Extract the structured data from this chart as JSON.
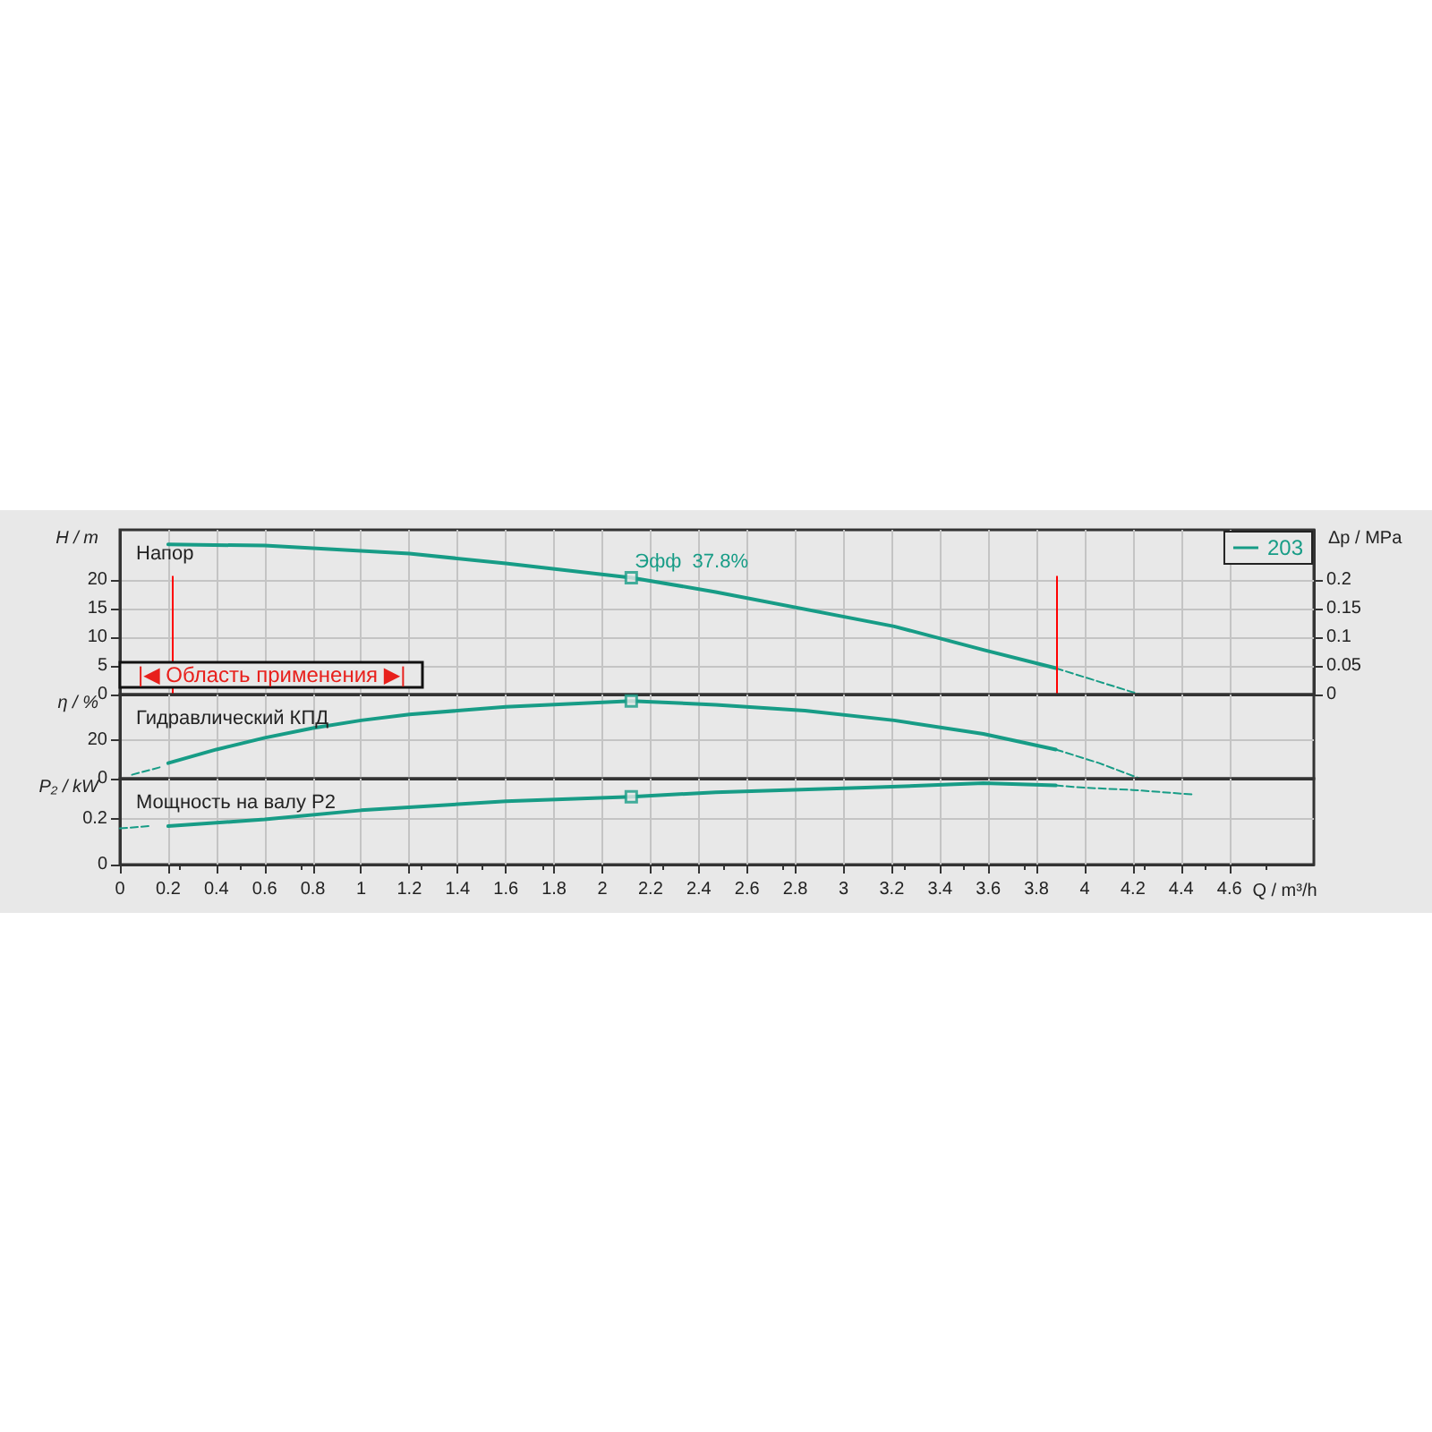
{
  "chart_data": [
    {
      "type": "line",
      "title": "Напор",
      "ylabel": "H / m",
      "y2label": "Δp / MPa",
      "xlim": [
        0,
        4.95
      ],
      "xticks": [
        0,
        0.2,
        0.4,
        0.6,
        0.8,
        1,
        1.2,
        1.4,
        1.6,
        1.8,
        2,
        2.2,
        2.4,
        2.6,
        2.8,
        3,
        3.2,
        3.4,
        3.6,
        3.8,
        4,
        4.2,
        4.4,
        4.6
      ],
      "ylim": [
        0,
        28.75
      ],
      "yticks": [
        0,
        5,
        10,
        15,
        20
      ],
      "y2lim": [
        0,
        0.2875
      ],
      "y2ticks": [
        0,
        0.05,
        0.1,
        0.15,
        0.2
      ],
      "grid": true,
      "legend": "top right",
      "tick_labels": "y",
      "series": [
        {
          "name": "203",
          "color": "#179c86",
          "x": [
            0.2,
            0.6,
            1.2,
            1.6,
            2.12,
            2.47,
            3.21,
            3.58,
            3.88
          ],
          "values": [
            26.2,
            26,
            24.6,
            22.9,
            20.4,
            17.9,
            11.9,
            7.8,
            4.6
          ]
        },
        {
          "color": "#179c86",
          "line_style": "dashed",
          "x": [
            3.88,
            4.23
          ],
          "values": [
            4.6,
            0
          ]
        },
        {
          "type": "scatter",
          "marker": "square",
          "color": "#179c86",
          "x": [
            2.12
          ],
          "values": [
            20.4
          ]
        }
      ],
      "ref_lines": [
        {
          "axis": "x",
          "value": 0.22,
          "color": "#ff0000"
        },
        {
          "axis": "x",
          "value": 3.88,
          "color": "#ff0000"
        }
      ],
      "annotations": [
        {
          "text": "Эфф  37.8%",
          "x": 2.12,
          "y": 20.4
        },
        "|◀ Область применения ▶|"
      ]
    },
    {
      "type": "line",
      "title": "Гидравлический КПД",
      "ylabel": "η / %",
      "xlim": [
        0,
        4.95
      ],
      "xticks": [
        0,
        0.2,
        0.4,
        0.6,
        0.8,
        1,
        1.2,
        1.4,
        1.6,
        1.8,
        2,
        2.2,
        2.4,
        2.6,
        2.8,
        3,
        3.2,
        3.4,
        3.6,
        3.8,
        4,
        4.2,
        4.4,
        4.6
      ],
      "ylim": [
        0,
        43.3
      ],
      "yticks": [
        0,
        20
      ],
      "grid": true,
      "tick_labels": "y",
      "series": [
        {
          "color": "#179c86",
          "line_style": "dashed",
          "x": [
            0.05,
            0.17
          ],
          "values": [
            2,
            6
          ]
        },
        {
          "color": "#179c86",
          "x": [
            0.2,
            0.4,
            0.6,
            0.8,
            1,
            1.2,
            1.6,
            2.12,
            2.47,
            2.84,
            3.21,
            3.58,
            3.88
          ],
          "values": [
            8,
            15,
            21,
            26,
            30,
            33,
            37,
            40,
            38,
            35,
            30,
            23,
            15
          ]
        },
        {
          "color": "#179c86",
          "line_style": "dashed",
          "x": [
            3.88,
            4.06,
            4.23
          ],
          "values": [
            15,
            8,
            0
          ]
        },
        {
          "type": "scatter",
          "marker": "square",
          "color": "#179c86",
          "x": [
            2.12
          ],
          "values": [
            40
          ]
        }
      ]
    },
    {
      "type": "line",
      "title": "Мощность на валу P2",
      "ylabel": "P₂ / kW",
      "xlabel": "Q / m³/h",
      "xlim": [
        0,
        4.95
      ],
      "xticks": [
        0,
        0.2,
        0.4,
        0.6,
        0.8,
        1,
        1.2,
        1.4,
        1.6,
        1.8,
        2,
        2.2,
        2.4,
        2.6,
        2.8,
        3,
        3.2,
        3.4,
        3.6,
        3.8,
        4,
        4.2,
        4.4,
        4.6
      ],
      "ylim": [
        0,
        0.38
      ],
      "yticks": [
        0,
        0.2
      ],
      "grid": true,
      "series": [
        {
          "color": "#179c86",
          "line_style": "dashed",
          "x": [
            0,
            0.12
          ],
          "values": [
            0.16,
            0.17
          ]
        },
        {
          "color": "#179c86",
          "x": [
            0.2,
            0.6,
            1,
            1.6,
            2.12,
            2.47,
            3.09,
            3.58,
            3.88
          ],
          "values": [
            0.17,
            0.2,
            0.24,
            0.28,
            0.3,
            0.32,
            0.34,
            0.36,
            0.35
          ]
        },
        {
          "color": "#179c86",
          "line_style": "dashed",
          "x": [
            3.88,
            4,
            4.2,
            4.45
          ],
          "values": [
            0.35,
            0.34,
            0.33,
            0.31
          ]
        },
        {
          "type": "scatter",
          "marker": "square",
          "color": "#179c86",
          "x": [
            2.12
          ],
          "values": [
            0.3
          ]
        }
      ]
    }
  ]
}
